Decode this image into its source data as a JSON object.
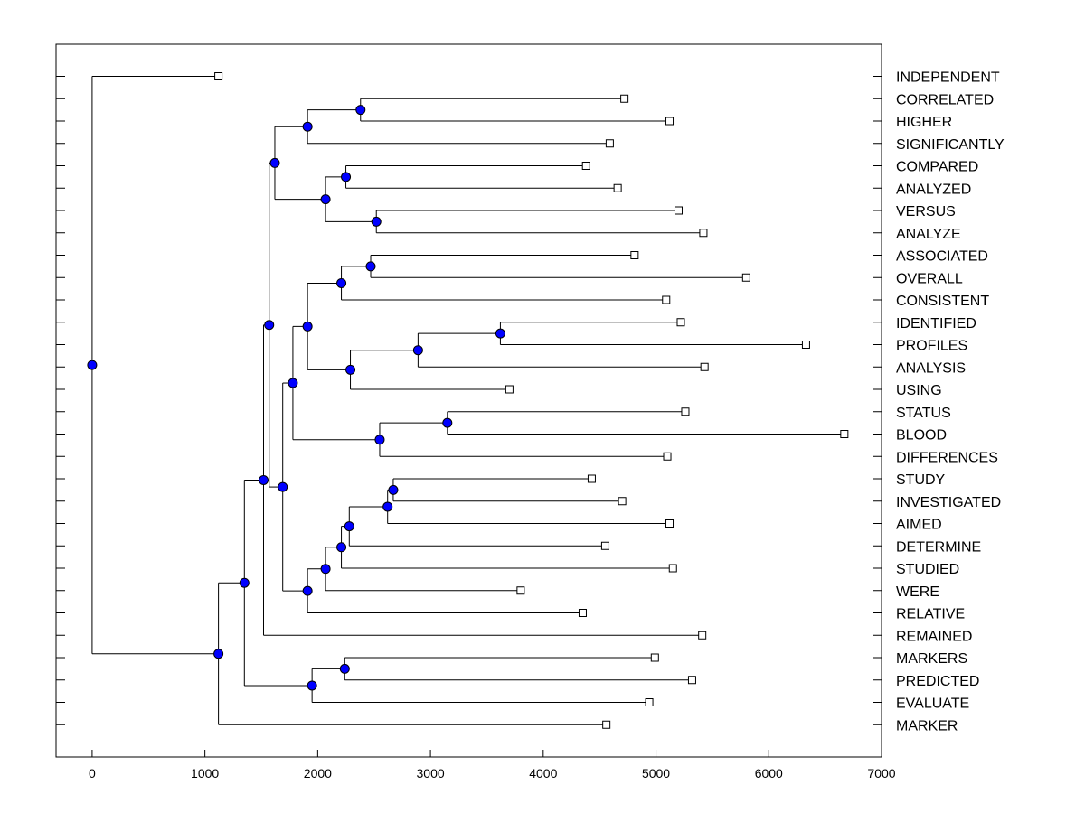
{
  "chart_data": {
    "type": "dendrogram",
    "title": "",
    "xlabel": "",
    "ylabel": "",
    "xlim": [
      -320,
      7000
    ],
    "xticks": [
      "0",
      "1000",
      "2000",
      "3000",
      "4000",
      "5000",
      "6000",
      "7000"
    ],
    "leaves": [
      {
        "label": "INDEPENDENT",
        "x": 1120
      },
      {
        "label": "CORRELATED",
        "x": 4720
      },
      {
        "label": "HIGHER",
        "x": 5120
      },
      {
        "label": "SIGNIFICANTLY",
        "x": 4590
      },
      {
        "label": "COMPARED",
        "x": 4380
      },
      {
        "label": "ANALYZED",
        "x": 4660
      },
      {
        "label": "VERSUS",
        "x": 5200
      },
      {
        "label": "ANALYZE",
        "x": 5420
      },
      {
        "label": "ASSOCIATED",
        "x": 4810
      },
      {
        "label": "OVERALL",
        "x": 5800
      },
      {
        "label": "CONSISTENT",
        "x": 5090
      },
      {
        "label": "IDENTIFIED",
        "x": 5220
      },
      {
        "label": "PROFILES",
        "x": 6330
      },
      {
        "label": "ANALYSIS",
        "x": 5430
      },
      {
        "label": "USING",
        "x": 3700
      },
      {
        "label": "STATUS",
        "x": 5260
      },
      {
        "label": "BLOOD",
        "x": 6670
      },
      {
        "label": "DIFFERENCES",
        "x": 5100
      },
      {
        "label": "STUDY",
        "x": 4430
      },
      {
        "label": "INVESTIGATED",
        "x": 4700
      },
      {
        "label": "AIMED",
        "x": 5120
      },
      {
        "label": "DETERMINE",
        "x": 4550
      },
      {
        "label": "STUDIED",
        "x": 5150
      },
      {
        "label": "WERE",
        "x": 3800
      },
      {
        "label": "RELATIVE",
        "x": 4350
      },
      {
        "label": "REMAINED",
        "x": 5410
      },
      {
        "label": "MARKERS",
        "x": 4990
      },
      {
        "label": "PREDICTED",
        "x": 5320
      },
      {
        "label": "EVALUATE",
        "x": 4940
      },
      {
        "label": "MARKER",
        "x": 4560
      }
    ],
    "merges": [
      {
        "id": "m1",
        "height": 2380,
        "children": [
          "L1",
          "L2"
        ]
      },
      {
        "id": "m2",
        "height": 1910,
        "children": [
          "m1",
          "L3"
        ]
      },
      {
        "id": "m3",
        "height": 2250,
        "children": [
          "L4",
          "L5"
        ]
      },
      {
        "id": "m4",
        "height": 2520,
        "children": [
          "L6",
          "L7"
        ]
      },
      {
        "id": "m5",
        "height": 2070,
        "children": [
          "m3",
          "m4"
        ]
      },
      {
        "id": "m6",
        "height": 1620,
        "children": [
          "m2",
          "m5"
        ]
      },
      {
        "id": "m7",
        "height": 2470,
        "children": [
          "L8",
          "L9"
        ]
      },
      {
        "id": "m8",
        "height": 2210,
        "children": [
          "m7",
          "L10"
        ]
      },
      {
        "id": "m9",
        "height": 3620,
        "children": [
          "L11",
          "L12"
        ]
      },
      {
        "id": "m10",
        "height": 2890,
        "children": [
          "m9",
          "L13"
        ]
      },
      {
        "id": "m11",
        "height": 2290,
        "children": [
          "m10",
          "L14"
        ]
      },
      {
        "id": "m12",
        "height": 1910,
        "children": [
          "m8",
          "m11"
        ]
      },
      {
        "id": "m13",
        "height": 3150,
        "children": [
          "L15",
          "L16"
        ]
      },
      {
        "id": "m14",
        "height": 2550,
        "children": [
          "m13",
          "L17"
        ]
      },
      {
        "id": "m15",
        "height": 1780,
        "children": [
          "m12",
          "m14"
        ]
      },
      {
        "id": "m16",
        "height": 2670,
        "children": [
          "L18",
          "L19"
        ]
      },
      {
        "id": "m17",
        "height": 2620,
        "children": [
          "m16",
          "L20"
        ]
      },
      {
        "id": "m18",
        "height": 2280,
        "children": [
          "m17",
          "L21"
        ]
      },
      {
        "id": "m19",
        "height": 2210,
        "children": [
          "m18",
          "L22"
        ]
      },
      {
        "id": "m20",
        "height": 2070,
        "children": [
          "m19",
          "L23"
        ]
      },
      {
        "id": "m21",
        "height": 1910,
        "children": [
          "m20",
          "L24"
        ]
      },
      {
        "id": "m22",
        "height": 1690,
        "children": [
          "m15",
          "m21"
        ]
      },
      {
        "id": "m23",
        "height": 1570,
        "children": [
          "m6",
          "m22"
        ]
      },
      {
        "id": "m24",
        "height": 1520,
        "children": [
          "m23",
          "L25"
        ]
      },
      {
        "id": "m25",
        "height": 2240,
        "children": [
          "L26",
          "L27"
        ]
      },
      {
        "id": "m26",
        "height": 1950,
        "children": [
          "m25",
          "L28"
        ]
      },
      {
        "id": "m27",
        "height": 1350,
        "children": [
          "m24",
          "m26"
        ]
      },
      {
        "id": "m28",
        "height": 1120,
        "children": [
          "m27",
          "L29"
        ]
      },
      {
        "id": "m29",
        "height": 0,
        "children": [
          "L0",
          "m28"
        ]
      }
    ],
    "colors": {
      "node": "#0000ff",
      "line": "#000000",
      "leaf_fill": "#ffffff"
    }
  }
}
